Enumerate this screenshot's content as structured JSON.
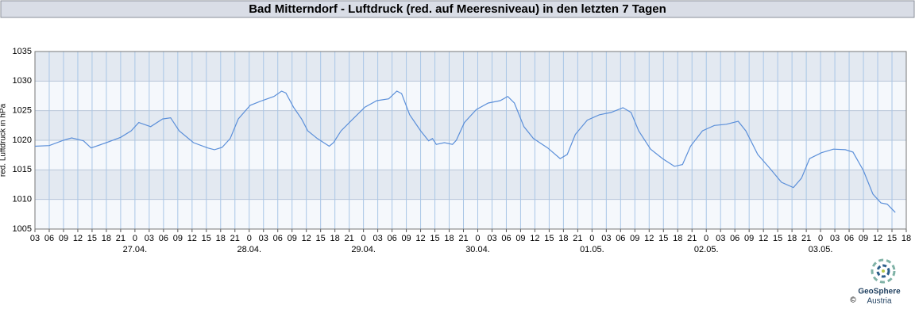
{
  "chart_data": {
    "type": "line",
    "title": "Bad Mitterndorf - Luftdruck (red. auf Meeresniveau) in den letzten 7 Tagen",
    "y_label": "red. Luftdruck in hPa",
    "grid": true,
    "xlim": [
      3,
      186
    ],
    "ylim": [
      1005,
      1035
    ],
    "yticks": [
      1005,
      1010,
      1015,
      1020,
      1025,
      1030,
      1035
    ],
    "xticks": [
      {
        "value": 3,
        "label": "03"
      },
      {
        "value": 6,
        "label": "06"
      },
      {
        "value": 9,
        "label": "09"
      },
      {
        "value": 12,
        "label": "12"
      },
      {
        "value": 15,
        "label": "15"
      },
      {
        "value": 18,
        "label": "18"
      },
      {
        "value": 21,
        "label": "21"
      },
      {
        "value": 24,
        "label": "0"
      },
      {
        "value": 27,
        "label": "03"
      },
      {
        "value": 30,
        "label": "06"
      },
      {
        "value": 33,
        "label": "09"
      },
      {
        "value": 36,
        "label": "12"
      },
      {
        "value": 39,
        "label": "15"
      },
      {
        "value": 42,
        "label": "18"
      },
      {
        "value": 45,
        "label": "21"
      },
      {
        "value": 48,
        "label": "0"
      },
      {
        "value": 51,
        "label": "03"
      },
      {
        "value": 54,
        "label": "06"
      },
      {
        "value": 57,
        "label": "09"
      },
      {
        "value": 60,
        "label": "12"
      },
      {
        "value": 63,
        "label": "15"
      },
      {
        "value": 66,
        "label": "18"
      },
      {
        "value": 69,
        "label": "21"
      },
      {
        "value": 72,
        "label": "0"
      },
      {
        "value": 75,
        "label": "03"
      },
      {
        "value": 78,
        "label": "06"
      },
      {
        "value": 81,
        "label": "09"
      },
      {
        "value": 84,
        "label": "12"
      },
      {
        "value": 87,
        "label": "15"
      },
      {
        "value": 90,
        "label": "18"
      },
      {
        "value": 93,
        "label": "21"
      },
      {
        "value": 96,
        "label": "0"
      },
      {
        "value": 99,
        "label": "03"
      },
      {
        "value": 102,
        "label": "06"
      },
      {
        "value": 105,
        "label": "09"
      },
      {
        "value": 108,
        "label": "12"
      },
      {
        "value": 111,
        "label": "15"
      },
      {
        "value": 114,
        "label": "18"
      },
      {
        "value": 117,
        "label": "21"
      },
      {
        "value": 120,
        "label": "0"
      },
      {
        "value": 123,
        "label": "03"
      },
      {
        "value": 126,
        "label": "06"
      },
      {
        "value": 129,
        "label": "09"
      },
      {
        "value": 132,
        "label": "12"
      },
      {
        "value": 135,
        "label": "15"
      },
      {
        "value": 138,
        "label": "18"
      },
      {
        "value": 141,
        "label": "21"
      },
      {
        "value": 144,
        "label": "0"
      },
      {
        "value": 147,
        "label": "03"
      },
      {
        "value": 150,
        "label": "06"
      },
      {
        "value": 153,
        "label": "09"
      },
      {
        "value": 156,
        "label": "12"
      },
      {
        "value": 159,
        "label": "15"
      },
      {
        "value": 162,
        "label": "18"
      },
      {
        "value": 165,
        "label": "21"
      },
      {
        "value": 168,
        "label": "0"
      },
      {
        "value": 171,
        "label": "03"
      },
      {
        "value": 174,
        "label": "06"
      },
      {
        "value": 177,
        "label": "09"
      },
      {
        "value": 180,
        "label": "12"
      },
      {
        "value": 183,
        "label": "15"
      },
      {
        "value": 186,
        "label": "18"
      }
    ],
    "x_date_labels": [
      {
        "value": 24,
        "label": "27.04."
      },
      {
        "value": 48,
        "label": "28.04."
      },
      {
        "value": 72,
        "label": "29.04."
      },
      {
        "value": 96,
        "label": "30.04."
      },
      {
        "value": 120,
        "label": "01.05."
      },
      {
        "value": 144,
        "label": "02.05."
      },
      {
        "value": 168,
        "label": "03.05."
      }
    ],
    "series": [
      {
        "color": "#5b8fd9",
        "x": [
          3,
          6,
          9,
          10.7,
          13.2,
          14.8,
          18,
          21,
          23.2,
          24.8,
          27.3,
          29.8,
          31.5,
          33.3,
          36.3,
          39.3,
          40.7,
          42.3,
          44,
          45.7,
          48.2,
          50.7,
          53.2,
          54.8,
          55.7,
          57.3,
          59,
          60.3,
          62.3,
          64.8,
          65.7,
          67.3,
          69.8,
          72.3,
          74.8,
          77.3,
          79,
          80,
          81.7,
          84,
          85.7,
          86.5,
          87.3,
          89,
          90.7,
          91.5,
          93.2,
          95.7,
          98.2,
          100.7,
          102.3,
          103.7,
          105.7,
          107.7,
          110.7,
          113.3,
          114.8,
          116.5,
          119,
          121.5,
          124,
          126.5,
          128.2,
          129.8,
          132.3,
          134.8,
          137.3,
          139,
          140.7,
          143.2,
          145.7,
          148.2,
          150.7,
          152.3,
          154.8,
          157.3,
          159.8,
          162.3,
          164,
          165.7,
          168.2,
          170.7,
          173.2,
          174.8,
          177,
          179,
          180.7,
          182,
          183.7
        ],
        "values": [
          1019.0,
          1019.1,
          1020.0,
          1020.4,
          1019.9,
          1018.7,
          1019.6,
          1020.5,
          1021.6,
          1023.0,
          1022.3,
          1023.6,
          1023.8,
          1021.6,
          1019.6,
          1018.7,
          1018.4,
          1018.8,
          1020.3,
          1023.6,
          1025.9,
          1026.7,
          1027.4,
          1028.3,
          1028.0,
          1025.6,
          1023.6,
          1021.6,
          1020.3,
          1019.0,
          1019.6,
          1021.6,
          1023.6,
          1025.6,
          1026.7,
          1027.0,
          1028.3,
          1027.9,
          1024.3,
          1021.6,
          1019.9,
          1020.3,
          1019.3,
          1019.6,
          1019.3,
          1020.0,
          1023.0,
          1025.2,
          1026.3,
          1026.7,
          1027.4,
          1026.3,
          1022.3,
          1020.3,
          1018.7,
          1016.9,
          1017.6,
          1021.0,
          1023.4,
          1024.3,
          1024.7,
          1025.5,
          1024.7,
          1021.6,
          1018.5,
          1016.9,
          1015.6,
          1015.9,
          1019.0,
          1021.6,
          1022.5,
          1022.7,
          1023.2,
          1021.6,
          1017.6,
          1015.3,
          1012.9,
          1012.0,
          1013.6,
          1016.9,
          1017.9,
          1018.5,
          1018.4,
          1018.0,
          1014.9,
          1010.9,
          1009.4,
          1009.2,
          1007.8
        ]
      }
    ]
  },
  "logo": {
    "name": "GeoSphere",
    "sub": "Austria",
    "copyright": "©"
  }
}
